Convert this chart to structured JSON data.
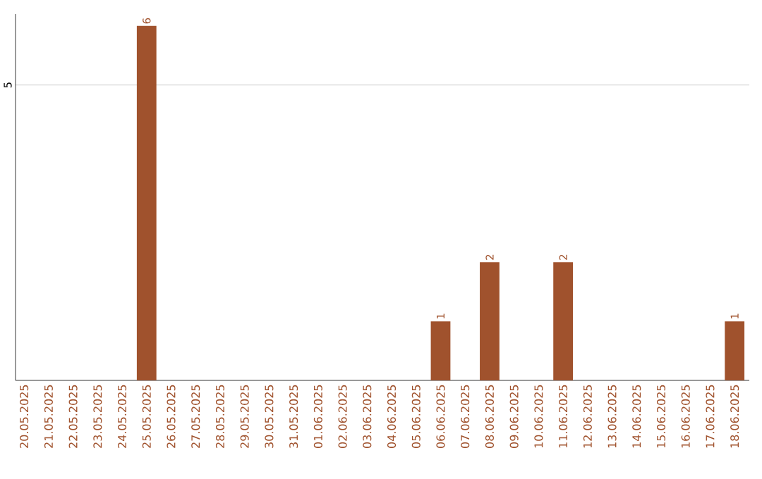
{
  "chart_data": {
    "type": "bar",
    "categories": [
      "20.05.2025",
      "21.05.2025",
      "22.05.2025",
      "23.05.2025",
      "24.05.2025",
      "25.05.2025",
      "26.05.2025",
      "27.05.2025",
      "28.05.2025",
      "29.05.2025",
      "30.05.2025",
      "31.05.2025",
      "01.06.2025",
      "02.06.2025",
      "03.06.2025",
      "04.06.2025",
      "05.06.2025",
      "06.06.2025",
      "07.06.2025",
      "08.06.2025",
      "09.06.2025",
      "10.06.2025",
      "11.06.2025",
      "12.06.2025",
      "13.06.2025",
      "14.06.2025",
      "15.06.2025",
      "16.06.2025",
      "17.06.2025",
      "18.06.2025"
    ],
    "values": [
      0,
      0,
      0,
      0,
      0,
      6,
      0,
      0,
      0,
      0,
      0,
      0,
      0,
      0,
      0,
      0,
      0,
      1,
      0,
      2,
      0,
      0,
      2,
      0,
      0,
      0,
      0,
      0,
      0,
      1
    ],
    "value_labels": [
      null,
      null,
      null,
      null,
      null,
      "6",
      null,
      null,
      null,
      null,
      null,
      null,
      null,
      null,
      null,
      null,
      null,
      "1",
      null,
      "2",
      null,
      null,
      "2",
      null,
      null,
      null,
      null,
      null,
      null,
      "1"
    ],
    "color": "#a0522d",
    "ylim": [
      0,
      6.2
    ],
    "yticks": [
      5
    ],
    "grid": "y"
  }
}
